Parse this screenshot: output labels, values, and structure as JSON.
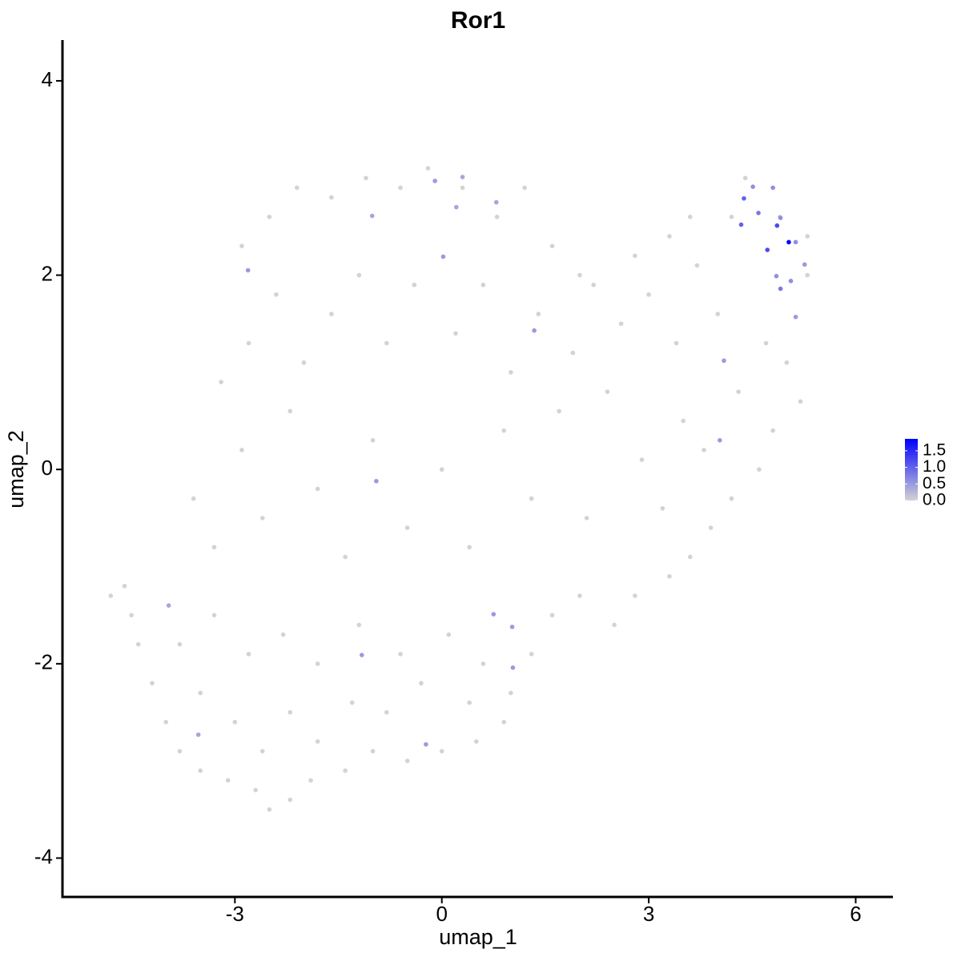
{
  "chart_data": {
    "type": "scatter",
    "title": "Ror1",
    "xlabel": "umap_1",
    "ylabel": "umap_2",
    "x": [
      -4.8,
      -4.6,
      -4.5,
      -4.4,
      -4.2,
      -4.0,
      -3.8,
      -3.5,
      -3.1,
      -2.7,
      -2.5,
      -2.2,
      -1.9,
      -1.4,
      -1.0,
      -0.5,
      0.0,
      0.5,
      0.9,
      1.0,
      -3.5,
      -3.0,
      -2.6,
      -2.2,
      -1.8,
      -1.3,
      -0.8,
      -0.3,
      0.4,
      -3.8,
      -3.3,
      -2.8,
      -2.3,
      -1.8,
      -1.2,
      -0.6,
      0.1,
      0.6,
      1.3,
      1.6,
      2.0,
      2.5,
      2.8,
      3.3,
      3.6,
      3.9,
      4.2,
      4.6,
      -3.6,
      -3.3,
      -2.9,
      -2.6,
      -2.2,
      -1.8,
      -1.4,
      -1.0,
      -0.5,
      0.0,
      0.4,
      0.9,
      1.3,
      1.7,
      2.1,
      2.4,
      2.9,
      3.2,
      3.5,
      3.8,
      -3.2,
      -2.8,
      -2.4,
      -2.0,
      -1.6,
      -1.2,
      -0.8,
      -0.4,
      0.2,
      0.6,
      1.0,
      1.4,
      1.9,
      2.2,
      2.6,
      3.0,
      3.4,
      3.7,
      4.0,
      4.3,
      4.7,
      5.0,
      5.2,
      4.8,
      -2.9,
      -2.5,
      -2.1,
      -1.6,
      -1.1,
      -0.6,
      -0.2,
      0.3,
      0.8,
      1.2,
      1.6,
      2.0,
      2.8,
      3.3,
      3.6,
      4.2,
      4.4,
      5.3,
      5.3,
      4.9,
      -3.96,
      -3.53,
      -0.23,
      1.03,
      1.02,
      0.75,
      -1.16,
      -0.95,
      -2.81,
      -1.01,
      0.79,
      -0.1,
      0.3,
      0.21,
      0.02,
      1.34,
      4.03,
      4.09,
      5.13,
      5.26,
      5.13,
      5.06,
      4.91,
      4.85,
      4.91,
      4.8,
      4.51,
      4.59,
      4.34,
      4.38,
      4.72,
      4.86,
      5.03
    ],
    "y": [
      -1.3,
      -1.2,
      -1.5,
      -1.8,
      -2.2,
      -2.6,
      -2.9,
      -3.1,
      -3.2,
      -3.3,
      -3.5,
      -3.4,
      -3.2,
      -3.1,
      -2.9,
      -3.0,
      -2.9,
      -2.8,
      -2.6,
      -2.3,
      -2.3,
      -2.6,
      -2.9,
      -2.5,
      -2.8,
      -2.4,
      -2.5,
      -2.2,
      -2.4,
      -1.8,
      -1.5,
      -1.9,
      -1.7,
      -2.0,
      -1.6,
      -1.9,
      -1.7,
      -2.0,
      -1.9,
      -1.5,
      -1.3,
      -1.6,
      -1.3,
      -1.1,
      -0.9,
      -0.6,
      -0.3,
      0.0,
      -0.3,
      -0.8,
      0.2,
      -0.5,
      0.6,
      -0.2,
      -0.9,
      0.3,
      -0.6,
      0.0,
      -0.8,
      0.4,
      -0.3,
      0.6,
      -0.5,
      0.8,
      0.1,
      -0.4,
      0.5,
      0.2,
      0.9,
      1.3,
      1.8,
      1.1,
      1.6,
      2.0,
      1.3,
      1.9,
      1.4,
      1.9,
      1.0,
      1.6,
      1.2,
      1.9,
      1.5,
      1.8,
      1.3,
      2.1,
      1.6,
      0.8,
      1.3,
      1.1,
      0.7,
      0.4,
      2.3,
      2.6,
      2.9,
      2.8,
      3.0,
      2.9,
      3.1,
      2.9,
      2.6,
      2.9,
      2.3,
      2.0,
      2.2,
      2.4,
      2.6,
      2.6,
      3.0,
      2.4,
      2.0,
      2.6,
      -1.4,
      -2.73,
      -2.83,
      -2.04,
      -1.62,
      -1.49,
      -1.91,
      -0.12,
      2.05,
      2.61,
      2.75,
      2.97,
      3.01,
      2.7,
      2.19,
      1.43,
      0.3,
      1.12,
      1.57,
      2.11,
      2.34,
      1.94,
      1.86,
      1.99,
      2.59,
      2.9,
      2.91,
      2.64,
      2.52,
      2.79,
      2.26,
      2.51,
      2.34
    ],
    "values": [
      0,
      0,
      0,
      0,
      0,
      0,
      0,
      0,
      0,
      0,
      0,
      0,
      0,
      0,
      0,
      0,
      0,
      0,
      0,
      0,
      0,
      0,
      0,
      0,
      0,
      0,
      0,
      0,
      0,
      0,
      0,
      0,
      0,
      0,
      0,
      0,
      0,
      0,
      0,
      0,
      0,
      0,
      0,
      0,
      0,
      0,
      0,
      0,
      0,
      0,
      0,
      0,
      0,
      0,
      0,
      0,
      0,
      0,
      0,
      0,
      0,
      0,
      0,
      0,
      0,
      0,
      0,
      0,
      0,
      0,
      0,
      0,
      0,
      0,
      0,
      0,
      0,
      0,
      0,
      0,
      0,
      0,
      0,
      0,
      0,
      0,
      0,
      0,
      0,
      0,
      0,
      0,
      0,
      0,
      0,
      0,
      0,
      0,
      0,
      0,
      0,
      0,
      0,
      0,
      0,
      0,
      0,
      0,
      0,
      0,
      0,
      0,
      0.4,
      0.4,
      0.5,
      0.5,
      0.5,
      0.5,
      0.5,
      0.5,
      0.5,
      0.4,
      0.4,
      0.5,
      0.4,
      0.4,
      0.5,
      0.5,
      0.5,
      0.5,
      0.5,
      0.5,
      0.6,
      0.6,
      0.8,
      0.6,
      0.6,
      0.6,
      0.6,
      0.8,
      1.0,
      1.0,
      1.2,
      1.2,
      1.8
    ],
    "xlim": [
      -5.5,
      6.54
    ],
    "ylim": [
      -4.4,
      4.42
    ],
    "xticks": [
      -3,
      0,
      3,
      6
    ],
    "yticks": [
      -4,
      -2,
      0,
      2,
      4
    ],
    "color_scale": {
      "low": "#d3d3d3",
      "high": "#0000ff",
      "lim": [
        0,
        1.86
      ],
      "ticks": [
        {
          "value": 0,
          "label": "0.0"
        },
        {
          "value": 0.5,
          "label": "0.5"
        },
        {
          "value": 1,
          "label": "1.0"
        },
        {
          "value": 1.5,
          "label": "1.5"
        }
      ]
    }
  }
}
